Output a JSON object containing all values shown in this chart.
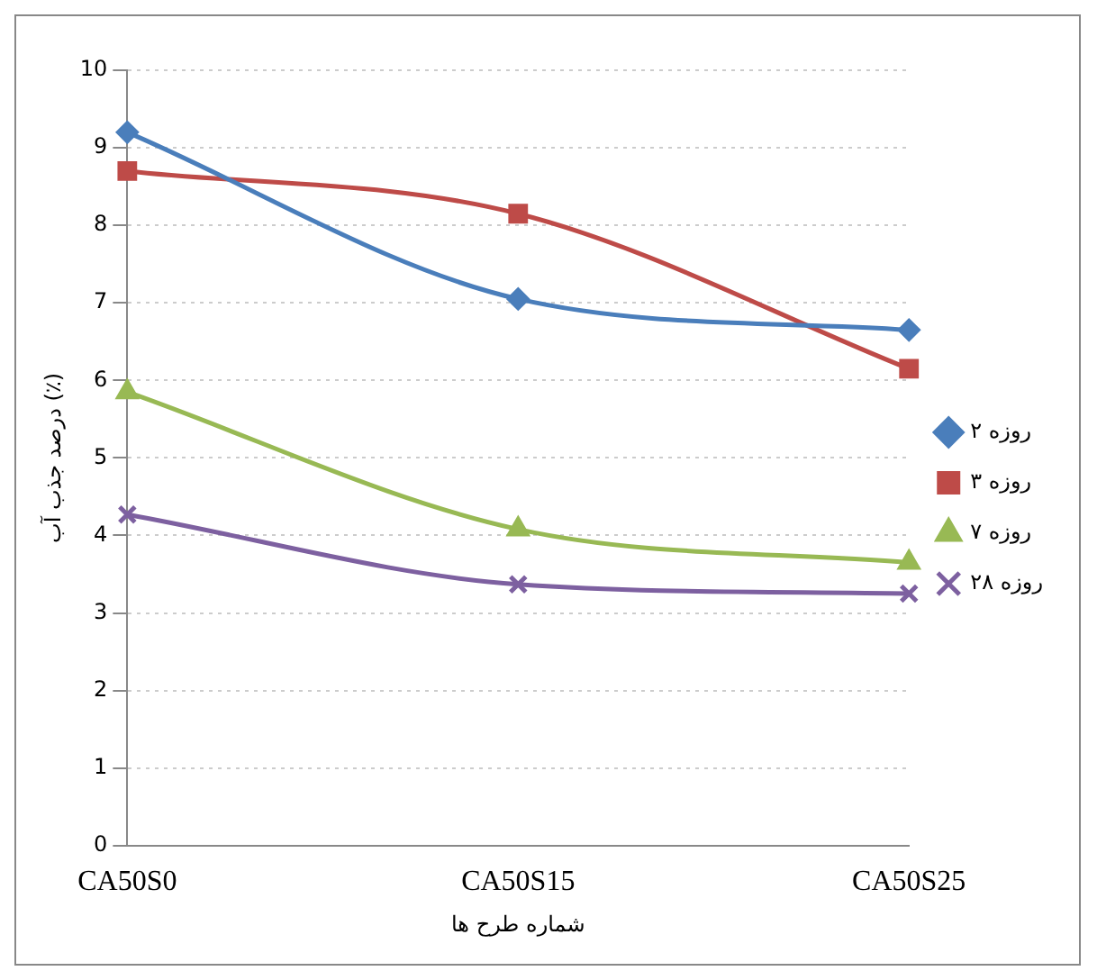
{
  "chart_data": {
    "type": "line",
    "xlabel": "شماره طرح ها",
    "ylabel": "درصد جذب آب (٪)",
    "categories": [
      "CA50S0",
      "CA50S15",
      "CA50S25"
    ],
    "series": [
      {
        "name": "۲ روزه",
        "color": "#4a7ebb",
        "values": [
          9.2,
          7.05,
          6.65
        ],
        "marker": "diamond"
      },
      {
        "name": "۳ روزه",
        "color": "#be4b48",
        "values": [
          8.7,
          8.15,
          6.15
        ],
        "marker": "square"
      },
      {
        "name": "۷ روزه",
        "color": "#98b954",
        "values": [
          5.85,
          4.08,
          3.65
        ],
        "marker": "triangle"
      },
      {
        "name": "۲۸ روزه",
        "color": "#7d60a0",
        "values": [
          4.27,
          3.37,
          3.25
        ],
        "marker": "cross"
      }
    ],
    "ylim": [
      0,
      10
    ],
    "yticks": [
      0,
      1,
      2,
      3,
      4,
      5,
      6,
      7,
      8,
      9,
      10
    ],
    "grid": "y",
    "legend": "right"
  }
}
